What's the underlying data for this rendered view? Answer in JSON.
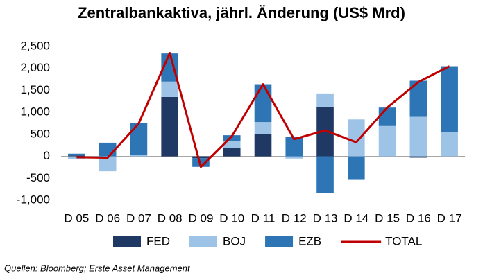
{
  "chart_data": {
    "type": "bar",
    "stacked": true,
    "title": "Zentralbankaktiva, jährl. Änderung (US$ Mrd)",
    "source": "Quellen: Bloomberg; Erste Asset Management",
    "categories": [
      "D 05",
      "D 06",
      "D 07",
      "D 08",
      "D 09",
      "D 10",
      "D 11",
      "D 12",
      "D 13",
      "D 14",
      "D 15",
      "D 16",
      "D 17"
    ],
    "series": [
      {
        "name": "FED",
        "color": "#1f3864",
        "values": [
          20,
          0,
          0,
          1350,
          -40,
          190,
          510,
          0,
          1130,
          0,
          0,
          -30,
          0
        ]
      },
      {
        "name": "BOJ",
        "color": "#9dc3e6",
        "values": [
          -70,
          -340,
          40,
          350,
          0,
          160,
          270,
          -50,
          300,
          840,
          690,
          900,
          550
        ]
      },
      {
        "name": "EZB",
        "color": "#2e75b6",
        "values": [
          40,
          310,
          710,
          640,
          -200,
          130,
          860,
          440,
          -840,
          -520,
          420,
          820,
          1500
        ]
      },
      {
        "name": "TOTAL",
        "color": "#c00000",
        "type": "line",
        "values": [
          -20,
          -30,
          750,
          2350,
          -240,
          460,
          1640,
          390,
          590,
          320,
          1110,
          1690,
          2050
        ]
      }
    ],
    "ylim": [
      -1000,
      2500
    ],
    "yticks": [
      {
        "value": -1000,
        "label": "-1,000"
      },
      -500,
      0,
      500,
      {
        "value": 1000,
        "label": "1,000"
      },
      {
        "value": 1500,
        "label": "1,500"
      },
      {
        "value": 2000,
        "label": "2,000"
      },
      {
        "value": 2500,
        "label": "2,500"
      }
    ],
    "legend": "bottom"
  }
}
